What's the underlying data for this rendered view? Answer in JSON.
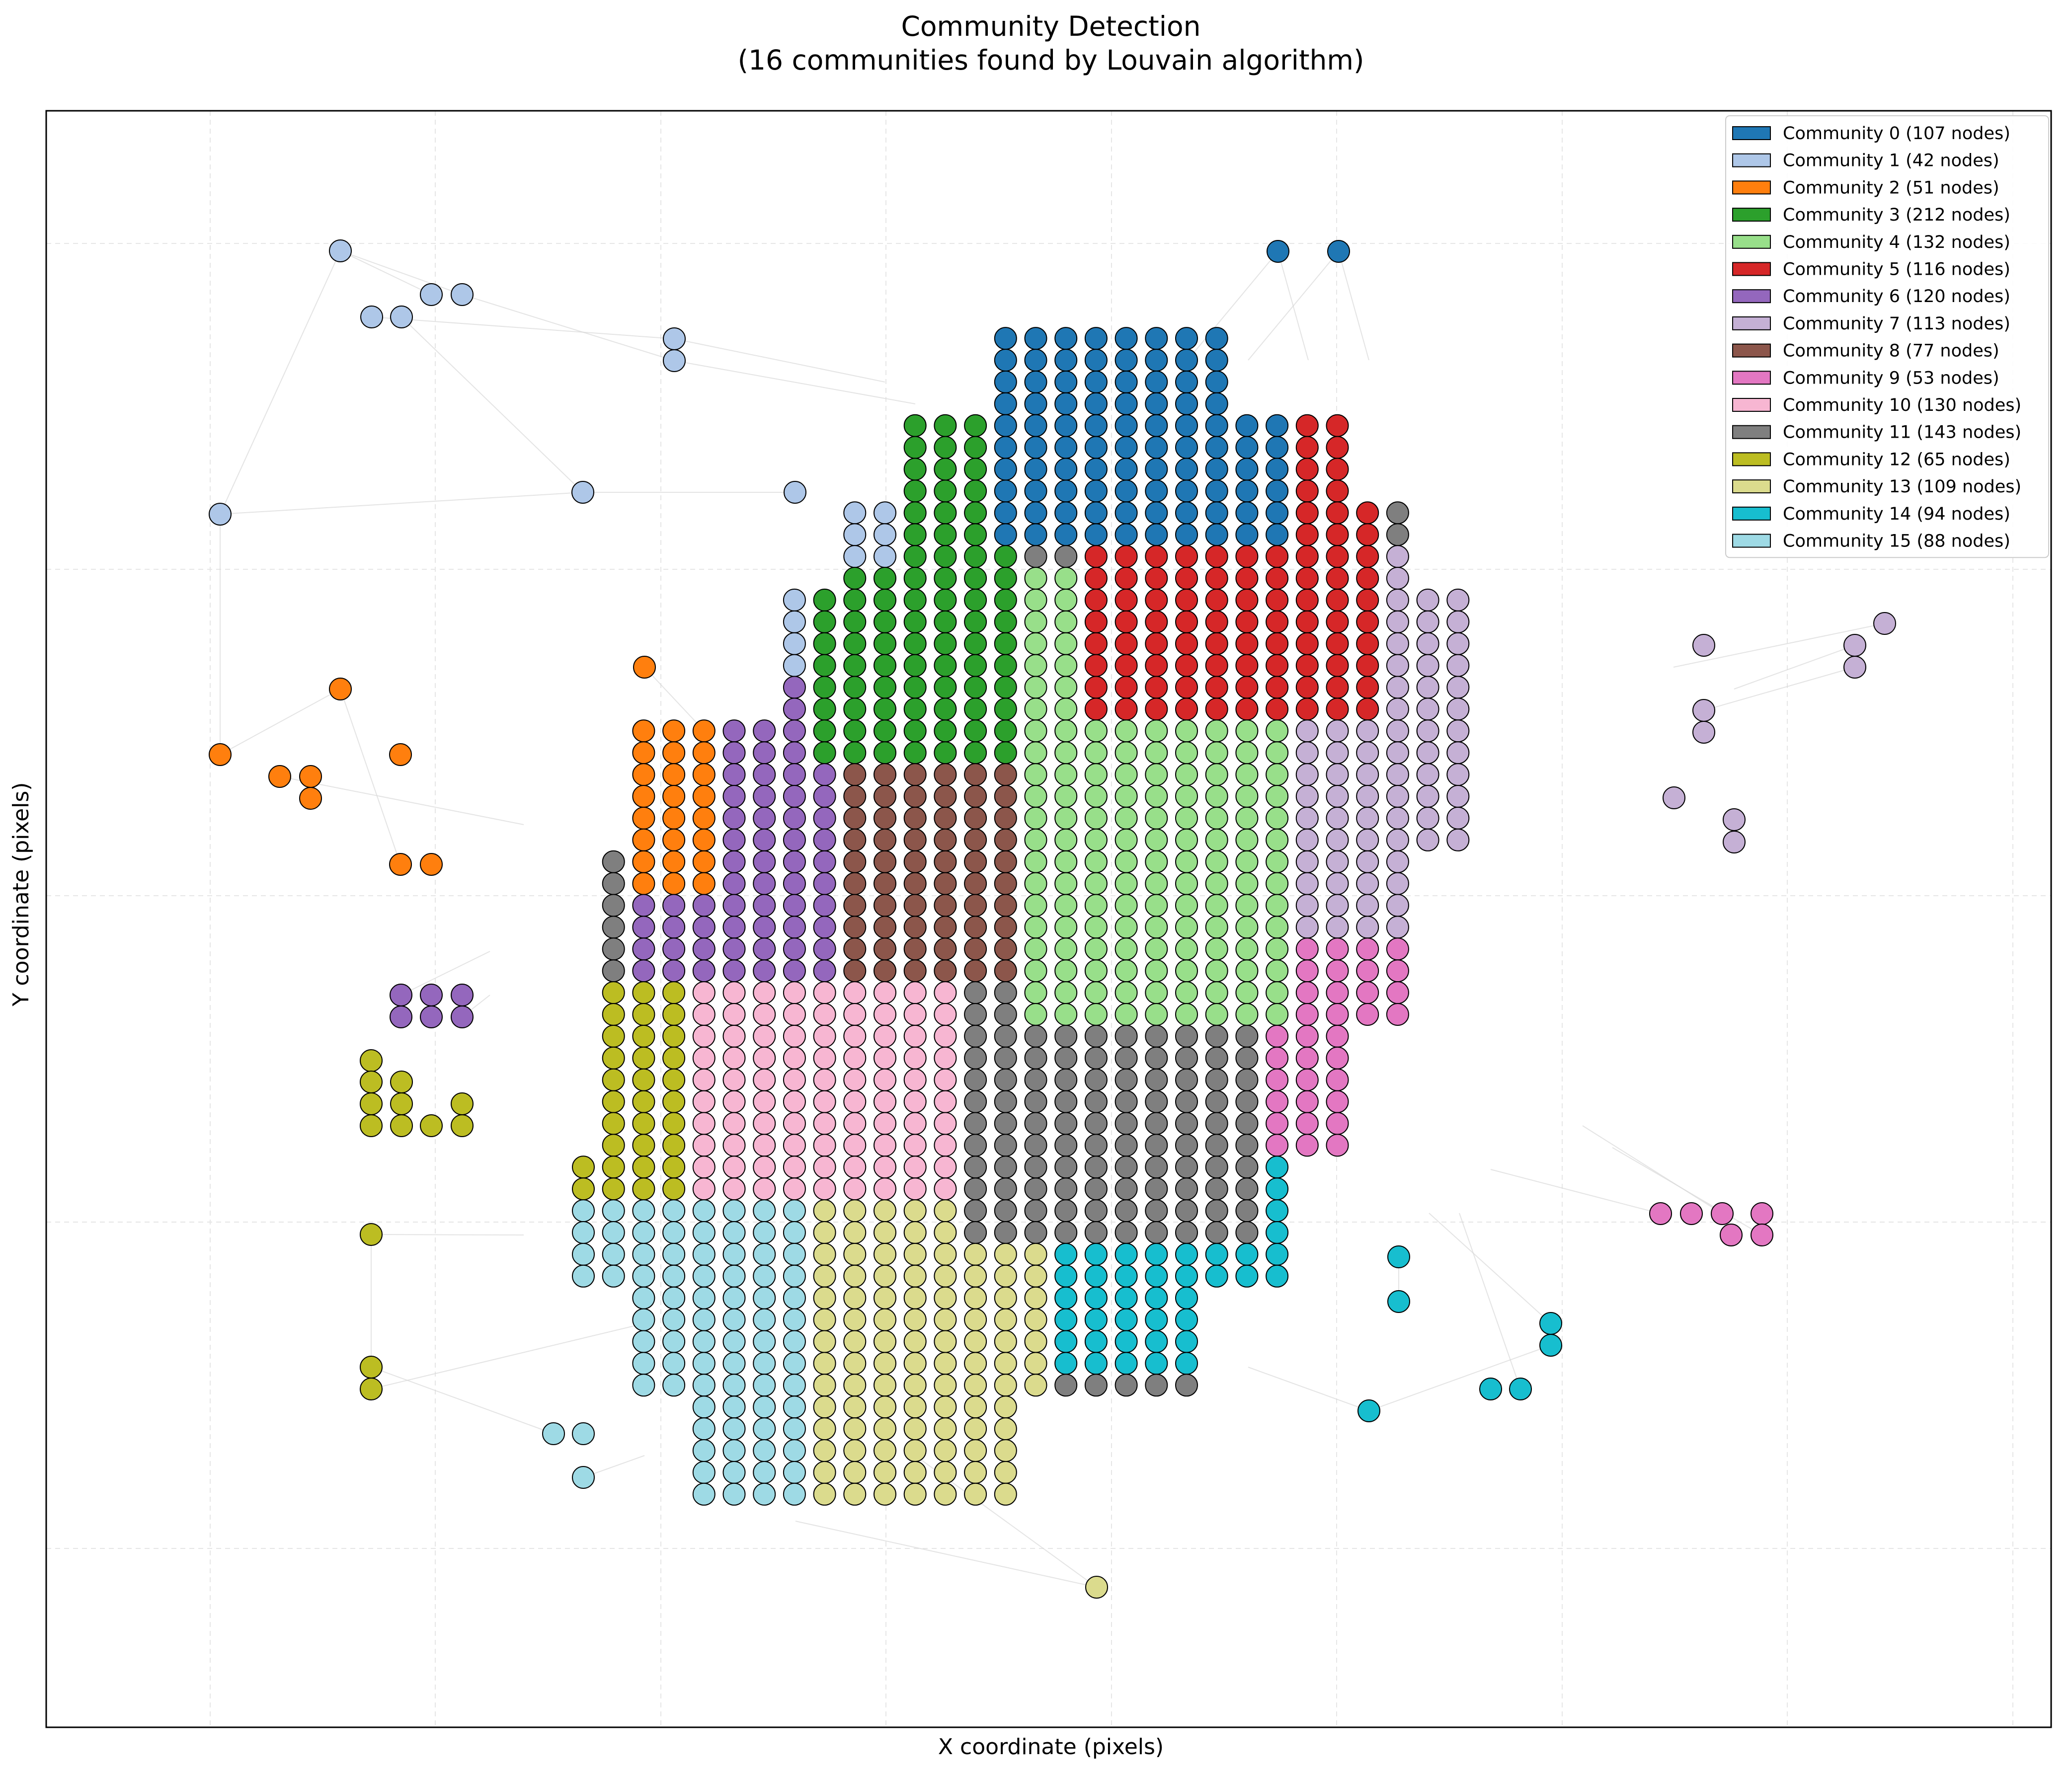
{
  "chart_data": {
    "type": "scatter",
    "title_line1": "Community Detection",
    "title_line2": "(16 communities found by Louvain algorithm)",
    "xlabel": "X coordinate (pixels)",
    "ylabel": "Y coordinate (pixels)",
    "grid": true,
    "legend_position": "top-right",
    "communities": [
      {
        "label": "Community 0 (107 nodes)",
        "color": "#1f77b4"
      },
      {
        "label": "Community 1 (42 nodes)",
        "color": "#aec7e8"
      },
      {
        "label": "Community 2 (51 nodes)",
        "color": "#ff7f0e"
      },
      {
        "label": "Community 3 (212 nodes)",
        "color": "#2ca02c"
      },
      {
        "label": "Community 4 (132 nodes)",
        "color": "#98df8a"
      },
      {
        "label": "Community 5 (116 nodes)",
        "color": "#d62728"
      },
      {
        "label": "Community 6 (120 nodes)",
        "color": "#9467bd"
      },
      {
        "label": "Community 7 (113 nodes)",
        "color": "#c5b0d5"
      },
      {
        "label": "Community 8 (77 nodes)",
        "color": "#8c564b"
      },
      {
        "label": "Community 9 (53 nodes)",
        "color": "#e377c2"
      },
      {
        "label": "Community 10 (130 nodes)",
        "color": "#f7b6d2"
      },
      {
        "label": "Community 11 (143 nodes)",
        "color": "#7f7f7f"
      },
      {
        "label": "Community 12 (65 nodes)",
        "color": "#bcbd22"
      },
      {
        "label": "Community 13 (109 nodes)",
        "color": "#dbdb8d"
      },
      {
        "label": "Community 14 (94 nodes)",
        "color": "#17becf"
      },
      {
        "label": "Community 15 (88 nodes)",
        "color": "#9edae5"
      }
    ]
  }
}
